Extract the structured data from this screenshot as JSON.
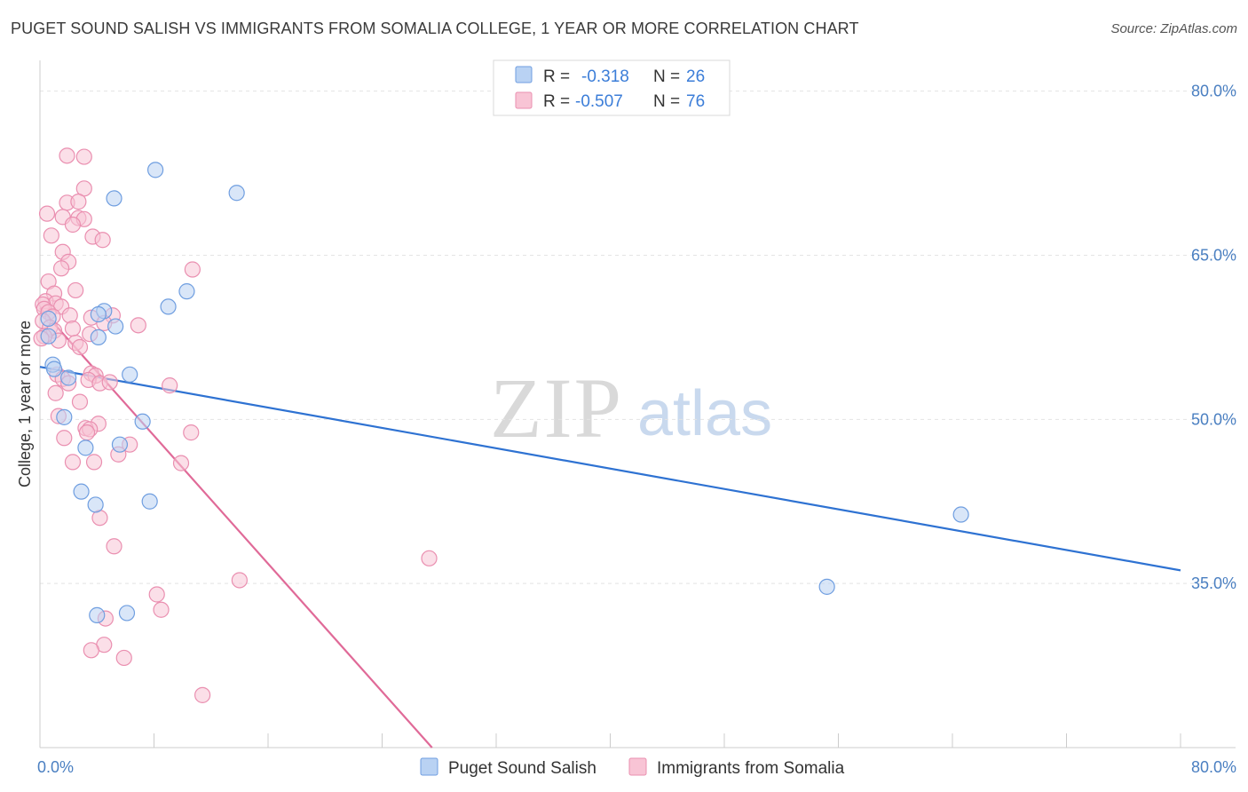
{
  "title": "PUGET SOUND SALISH VS IMMIGRANTS FROM SOMALIA COLLEGE, 1 YEAR OR MORE CORRELATION CHART",
  "source": "Source: ZipAtlas.com",
  "watermark": {
    "zip": "ZIP",
    "atlas": "atlas"
  },
  "colors": {
    "blue_fill": "#b9d2f3",
    "blue_stroke": "#6f9ee0",
    "blue_line": "#2e72d2",
    "pink_fill": "#f8c4d5",
    "pink_stroke": "#ea8fb0",
    "pink_line": "#e06a98",
    "grid": "#e4e4e4",
    "tick_text": "#4a7fc1"
  },
  "legend": {
    "series": [
      {
        "r_label": "R =",
        "r_value": "-0.318",
        "n_label": "N =",
        "n_value": "26"
      },
      {
        "r_label": "R =",
        "r_value": "-0.507",
        "n_label": "N =",
        "n_value": "76"
      }
    ]
  },
  "bottom_legend": [
    "Puget Sound Salish",
    "Immigrants from Somalia"
  ],
  "chart_data": {
    "type": "scatter",
    "title": "PUGET SOUND SALISH VS IMMIGRANTS FROM SOMALIA COLLEGE, 1 YEAR OR MORE CORRELATION CHART",
    "xlabel": "",
    "ylabel": "College, 1 year or more",
    "xlim": [
      0,
      80
    ],
    "ylim": [
      20,
      82
    ],
    "x_tick_labels": [
      "0.0%",
      "80.0%"
    ],
    "y_ticks": [
      35,
      50,
      65,
      80
    ],
    "y_tick_labels": [
      "35.0%",
      "50.0%",
      "65.0%",
      "80.0%"
    ],
    "grid": true,
    "legend_position": "top-center",
    "series": [
      {
        "name": "Puget Sound Salish",
        "R": -0.318,
        "N": 26,
        "trendline": {
          "x": [
            0,
            80
          ],
          "y": [
            54.8,
            36.2
          ]
        },
        "points": [
          {
            "x": 8.1,
            "y": 72.8
          },
          {
            "x": 5.2,
            "y": 70.2
          },
          {
            "x": 13.8,
            "y": 70.7
          },
          {
            "x": 10.3,
            "y": 61.7
          },
          {
            "x": 9.0,
            "y": 60.3
          },
          {
            "x": 4.5,
            "y": 59.9
          },
          {
            "x": 4.1,
            "y": 59.6
          },
          {
            "x": 5.3,
            "y": 58.5
          },
          {
            "x": 0.6,
            "y": 57.6
          },
          {
            "x": 4.1,
            "y": 57.5
          },
          {
            "x": 0.9,
            "y": 55.0
          },
          {
            "x": 1.0,
            "y": 54.6
          },
          {
            "x": 6.3,
            "y": 54.1
          },
          {
            "x": 2.0,
            "y": 53.8
          },
          {
            "x": 1.7,
            "y": 50.2
          },
          {
            "x": 7.2,
            "y": 49.8
          },
          {
            "x": 5.6,
            "y": 47.7
          },
          {
            "x": 3.2,
            "y": 47.4
          },
          {
            "x": 2.9,
            "y": 43.4
          },
          {
            "x": 7.7,
            "y": 42.5
          },
          {
            "x": 3.9,
            "y": 42.2
          },
          {
            "x": 64.6,
            "y": 41.3
          },
          {
            "x": 55.2,
            "y": 34.7
          },
          {
            "x": 6.1,
            "y": 32.3
          },
          {
            "x": 4.0,
            "y": 32.1
          },
          {
            "x": 0.6,
            "y": 59.2
          }
        ]
      },
      {
        "name": "Immigrants from Somalia",
        "R": -0.507,
        "N": 76,
        "trendline": {
          "x": [
            0,
            27.5
          ],
          "y": [
            60.2,
            20.0
          ]
        },
        "points": [
          {
            "x": 1.9,
            "y": 74.1
          },
          {
            "x": 3.1,
            "y": 74.0
          },
          {
            "x": 3.1,
            "y": 71.1
          },
          {
            "x": 1.9,
            "y": 69.8
          },
          {
            "x": 2.7,
            "y": 69.9
          },
          {
            "x": 0.5,
            "y": 68.8
          },
          {
            "x": 1.6,
            "y": 68.5
          },
          {
            "x": 2.7,
            "y": 68.4
          },
          {
            "x": 3.1,
            "y": 68.3
          },
          {
            "x": 2.3,
            "y": 67.8
          },
          {
            "x": 0.8,
            "y": 66.8
          },
          {
            "x": 3.7,
            "y": 66.7
          },
          {
            "x": 4.4,
            "y": 66.4
          },
          {
            "x": 1.6,
            "y": 65.3
          },
          {
            "x": 2.0,
            "y": 64.4
          },
          {
            "x": 10.7,
            "y": 63.7
          },
          {
            "x": 1.5,
            "y": 63.8
          },
          {
            "x": 0.6,
            "y": 62.6
          },
          {
            "x": 2.5,
            "y": 61.8
          },
          {
            "x": 1.0,
            "y": 61.5
          },
          {
            "x": 0.4,
            "y": 60.8
          },
          {
            "x": 1.1,
            "y": 60.6
          },
          {
            "x": 0.2,
            "y": 60.5
          },
          {
            "x": 1.5,
            "y": 60.3
          },
          {
            "x": 0.3,
            "y": 60.1
          },
          {
            "x": 0.6,
            "y": 59.8
          },
          {
            "x": 0.9,
            "y": 59.4
          },
          {
            "x": 2.1,
            "y": 59.5
          },
          {
            "x": 3.6,
            "y": 59.3
          },
          {
            "x": 5.1,
            "y": 59.5
          },
          {
            "x": 0.2,
            "y": 59.0
          },
          {
            "x": 4.5,
            "y": 58.8
          },
          {
            "x": 6.9,
            "y": 58.6
          },
          {
            "x": 0.7,
            "y": 58.4
          },
          {
            "x": 1.0,
            "y": 58.1
          },
          {
            "x": 2.3,
            "y": 58.3
          },
          {
            "x": 3.5,
            "y": 57.8
          },
          {
            "x": 0.3,
            "y": 57.6
          },
          {
            "x": 1.3,
            "y": 57.2
          },
          {
            "x": 2.5,
            "y": 57.0
          },
          {
            "x": 2.8,
            "y": 56.6
          },
          {
            "x": 0.1,
            "y": 57.4
          },
          {
            "x": 3.6,
            "y": 54.2
          },
          {
            "x": 1.2,
            "y": 54.1
          },
          {
            "x": 3.9,
            "y": 54.0
          },
          {
            "x": 1.6,
            "y": 53.7
          },
          {
            "x": 3.4,
            "y": 53.6
          },
          {
            "x": 2.0,
            "y": 53.3
          },
          {
            "x": 4.2,
            "y": 53.3
          },
          {
            "x": 4.9,
            "y": 53.4
          },
          {
            "x": 9.1,
            "y": 53.1
          },
          {
            "x": 1.1,
            "y": 52.4
          },
          {
            "x": 2.8,
            "y": 51.6
          },
          {
            "x": 1.3,
            "y": 50.3
          },
          {
            "x": 4.1,
            "y": 49.6
          },
          {
            "x": 3.2,
            "y": 49.2
          },
          {
            "x": 3.5,
            "y": 49.1
          },
          {
            "x": 3.3,
            "y": 48.8
          },
          {
            "x": 10.6,
            "y": 48.8
          },
          {
            "x": 1.7,
            "y": 48.3
          },
          {
            "x": 6.3,
            "y": 47.7
          },
          {
            "x": 5.5,
            "y": 46.8
          },
          {
            "x": 2.3,
            "y": 46.1
          },
          {
            "x": 3.8,
            "y": 46.1
          },
          {
            "x": 9.9,
            "y": 46.0
          },
          {
            "x": 4.2,
            "y": 41.0
          },
          {
            "x": 5.2,
            "y": 38.4
          },
          {
            "x": 27.3,
            "y": 37.3
          },
          {
            "x": 14.0,
            "y": 35.3
          },
          {
            "x": 8.2,
            "y": 34.0
          },
          {
            "x": 8.5,
            "y": 32.6
          },
          {
            "x": 4.6,
            "y": 31.8
          },
          {
            "x": 4.5,
            "y": 29.4
          },
          {
            "x": 3.6,
            "y": 28.9
          },
          {
            "x": 5.9,
            "y": 28.2
          },
          {
            "x": 11.4,
            "y": 24.8
          }
        ]
      }
    ]
  }
}
